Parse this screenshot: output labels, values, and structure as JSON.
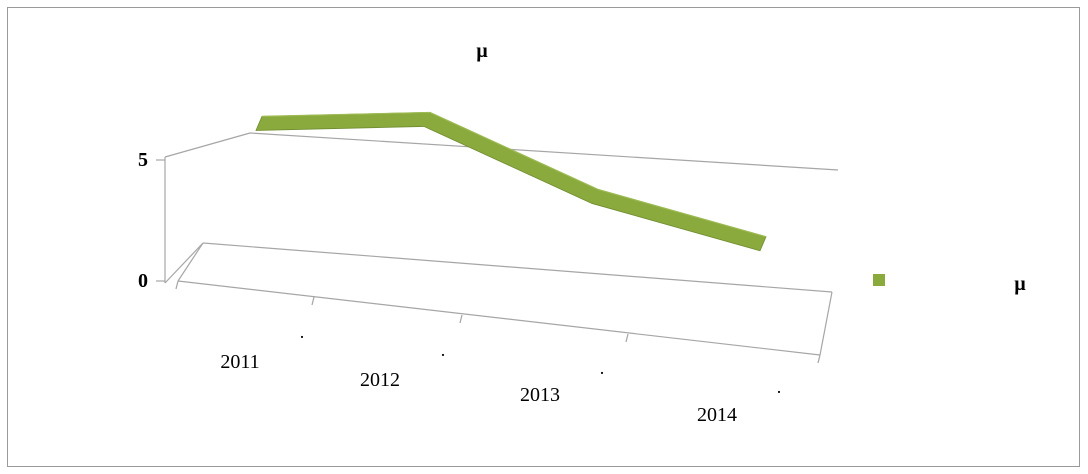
{
  "chart_data": {
    "type": "line",
    "style": "3d-ribbon",
    "title": "µ",
    "categories": [
      "2011",
      "2012",
      "2013",
      "2014"
    ],
    "category_sublabels": [
      ".",
      ".",
      ".",
      "."
    ],
    "series": [
      {
        "name": "µ",
        "values": [
          4.0,
          4.5,
          2.0,
          0.6
        ],
        "color": "#8aaa3e"
      }
    ],
    "ylim": [
      0,
      5
    ],
    "y_ticks": [
      0,
      5
    ],
    "grid": true,
    "legend_position": "right"
  }
}
